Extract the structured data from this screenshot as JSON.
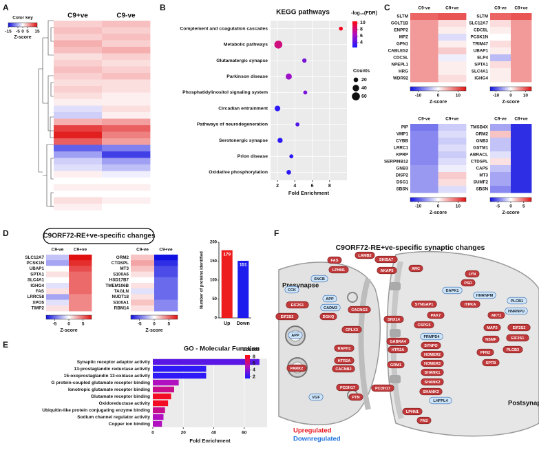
{
  "panel_labels": [
    "A",
    "B",
    "C",
    "D",
    "E",
    "F"
  ],
  "chart_data": [
    {
      "type": "heatmap",
      "columns": [
        "C9+ve",
        "C9-ve"
      ],
      "zlegend_title": "Color key",
      "zlabel": "Z-score",
      "zlim": [
        -15,
        15
      ],
      "zticks": [
        -15,
        -5,
        0,
        5,
        15
      ],
      "values": [
        [
          3,
          4
        ],
        [
          4,
          3
        ],
        [
          3,
          4
        ],
        [
          5,
          3
        ],
        [
          4,
          5
        ],
        [
          2,
          3
        ],
        [
          3,
          2
        ],
        [
          4,
          3
        ],
        [
          3,
          4
        ],
        [
          2,
          2
        ],
        [
          3,
          2
        ],
        [
          2,
          1
        ],
        [
          1,
          1
        ],
        [
          -2,
          2
        ],
        [
          -3,
          1
        ],
        [
          5,
          6
        ],
        [
          12,
          10
        ],
        [
          14,
          8
        ],
        [
          10,
          6
        ],
        [
          -10,
          -8
        ],
        [
          -6,
          -12
        ],
        [
          -3,
          -6
        ],
        [
          -2,
          -4
        ],
        [
          1,
          -1
        ],
        [
          0,
          0
        ],
        [
          1,
          1
        ],
        [
          0,
          0
        ],
        [
          2,
          1
        ],
        [
          1,
          0
        ],
        [
          0,
          0
        ]
      ]
    },
    {
      "type": "dot",
      "title": "KEGG pathways",
      "xlabel": "Fold Enrichment",
      "categories": [
        "Complement and coagulation cascades",
        "Metabolic pathways",
        "Glutamatergic synapse",
        "Parkinson disease",
        "Phosphatidylinositol signaling system",
        "Circadian entrainment",
        "Pathways of neurodegeneration",
        "Serotonergic synapse",
        "Prion disease",
        "Oxidative phosphorylation"
      ],
      "values": [
        9.3,
        2.1,
        5.1,
        3.3,
        5.2,
        2.0,
        4.3,
        2.3,
        3.6,
        3.3
      ],
      "fdr": [
        10,
        8,
        5,
        6,
        5,
        3,
        4,
        3,
        3,
        3
      ],
      "counts": [
        15,
        60,
        18,
        35,
        15,
        30,
        15,
        25,
        15,
        20
      ],
      "xlim": [
        1.2,
        10
      ],
      "xticks": [
        2,
        4,
        6,
        8
      ],
      "color_label": "-log₁₀(FDR)",
      "color_lim": [
        2.5,
        10.5
      ],
      "color_ticks": [
        4,
        6,
        8,
        10
      ],
      "size_label": "Counts",
      "size_ticks": [
        20,
        40,
        60
      ]
    },
    {
      "type": "heatmap",
      "columns": [
        "C9-ve",
        "C9+ve"
      ],
      "zlabel": "Z-score",
      "zlim": [
        -14,
        14
      ],
      "zticks": [
        -10,
        0,
        10
      ],
      "rows": [
        "SLTM",
        "GOLT1B",
        "ENPP2",
        "MPZ",
        "GPN1",
        "CABLES2",
        "CDCSL",
        "NPEPL1",
        "HRG",
        "WDR92"
      ],
      "values": [
        [
          9,
          10
        ],
        [
          6,
          2
        ],
        [
          6,
          1
        ],
        [
          6,
          -2
        ],
        [
          6,
          1
        ],
        [
          6,
          3
        ],
        [
          6,
          -1
        ],
        [
          6,
          1
        ],
        [
          6,
          1
        ],
        [
          6,
          2
        ]
      ]
    },
    {
      "type": "heatmap",
      "columns": [
        "C9-ve",
        "C9+ve"
      ],
      "zlabel": "Z-score",
      "zlim": [
        -14,
        14
      ],
      "zticks": [
        -10,
        0,
        10
      ],
      "rows": [
        "SLTM",
        "SLC12A7",
        "CDC5L",
        "PCSK1N",
        "TRIM47",
        "UBAP1",
        "ELP4",
        "SPTA1",
        "SLC4A1",
        "IGHG4"
      ],
      "values": [
        [
          9,
          10
        ],
        [
          2,
          6
        ],
        [
          1,
          6
        ],
        [
          0,
          6
        ],
        [
          2,
          6
        ],
        [
          1,
          6
        ],
        [
          -4,
          6
        ],
        [
          2,
          6
        ],
        [
          1,
          6
        ],
        [
          1,
          6
        ]
      ]
    },
    {
      "type": "heatmap",
      "columns": [
        "C9-ve",
        "C9+ve"
      ],
      "zlabel": "Z-score",
      "zlim": [
        -14,
        14
      ],
      "zticks": [
        -10,
        0,
        10
      ],
      "rows": [
        "PIP",
        "VMP1",
        "CYBB",
        "LRRC1",
        "KPRP",
        "SERPINB12",
        "GNB3",
        "DISP2",
        "DSG1",
        "SBSN"
      ],
      "values": [
        [
          -8,
          -3
        ],
        [
          -7,
          -2
        ],
        [
          -7,
          -3
        ],
        [
          -7,
          -2
        ],
        [
          -7,
          -3
        ],
        [
          -7,
          -2
        ],
        [
          -6,
          -1
        ],
        [
          -6,
          3
        ],
        [
          -6,
          2
        ],
        [
          -6,
          -2
        ]
      ]
    },
    {
      "type": "heatmap",
      "columns": [
        "C9-ve",
        "C9+ve"
      ],
      "zlabel": "Z-score",
      "zlim": [
        -8,
        8
      ],
      "zticks": [
        -5,
        0,
        5
      ],
      "rows": [
        "TMSB4X",
        "ORM2",
        "GNB3",
        "GSTM1",
        "ABRACL",
        "CTDSPL",
        "CAPS",
        "MT3",
        "SUMF2",
        "SBSN"
      ],
      "values": [
        [
          -3,
          -7
        ],
        [
          2,
          -7
        ],
        [
          -2,
          -7
        ],
        [
          -2,
          -7
        ],
        [
          -1,
          -7
        ],
        [
          1,
          -7
        ],
        [
          -2,
          -7
        ],
        [
          -3,
          -7
        ],
        [
          -3,
          -7
        ],
        [
          -4,
          -7
        ]
      ]
    },
    {
      "type": "heatmap",
      "title": "C9ORF72-RE+ve-specific changes",
      "columns": [
        "C9-ve",
        "C9+ve"
      ],
      "zlabel": "Z-score",
      "zlim": [
        -8,
        8
      ],
      "zticks": [
        -5,
        0,
        5
      ],
      "rows": [
        "SLC12A7",
        "PCSK1N",
        "UBAP1",
        "SPTA1",
        "SLC4A1",
        "IGHG4",
        "FAS",
        "LRRC58",
        "XPO5",
        "TIMP2"
      ],
      "values": [
        [
          -2,
          8
        ],
        [
          -3,
          7
        ],
        [
          0,
          6
        ],
        [
          1,
          5
        ],
        [
          0,
          5
        ],
        [
          -1,
          5
        ],
        [
          1,
          5
        ],
        [
          -3,
          4
        ],
        [
          -1,
          4
        ],
        [
          1,
          4
        ]
      ]
    },
    {
      "type": "heatmap",
      "columns": [
        "C9-ve",
        "C9+ve"
      ],
      "zlabel": "Z-score",
      "zlim": [
        -8,
        8
      ],
      "zticks": [
        -5,
        0,
        5
      ],
      "rows": [
        "ORM2",
        "CTDSPL",
        "MT3",
        "S100A6",
        "HSD17B7",
        "TMEM106B",
        "TAGLN",
        "NUDT18",
        "S100A1",
        "RBM14"
      ],
      "values": [
        [
          2,
          -8
        ],
        [
          3,
          -7
        ],
        [
          2,
          -6
        ],
        [
          1,
          -6
        ],
        [
          0,
          -5
        ],
        [
          1,
          -5
        ],
        [
          -1,
          -5
        ],
        [
          1,
          -5
        ],
        [
          2,
          -4
        ],
        [
          1,
          -4
        ]
      ]
    },
    {
      "type": "bar",
      "ylabel": "Number of proteins identified",
      "categories": [
        "Up",
        "Down"
      ],
      "values": [
        179,
        151
      ],
      "colors": [
        "#ee1d1d",
        "#1d1dee"
      ],
      "ylim": [
        0,
        200
      ],
      "yticks": [
        0,
        50,
        100,
        150,
        200
      ]
    },
    {
      "type": "hbar",
      "title": "GO - Molecular Function",
      "xlabel": "Fold Enrichment",
      "categories": [
        "Synaptic receptor adaptor activity",
        "13-prostaglandin reductase activity",
        "15-oxoprostaglandin 13-oxidase activity",
        "G protein-coupled glutamate receptor binding",
        "Ionotropic glutamate receptor binding",
        "Glutamate receptor binding",
        "Oxidoreductase activity",
        "Ubiquitin-like protein conjugating enzyme binding",
        "Sodium channel regulator activity",
        "Copper ion binding"
      ],
      "values": [
        70,
        35,
        35,
        17,
        14,
        12,
        10,
        8,
        7,
        6
      ],
      "counts": [
        3,
        2,
        2,
        5,
        6,
        8,
        8,
        6,
        5,
        5
      ],
      "xlim": [
        0,
        75
      ],
      "xticks": [
        0,
        20,
        40,
        60
      ],
      "color_label": "Counts",
      "color_lim": [
        1.5,
        8.5
      ],
      "color_ticks": [
        2,
        4,
        6,
        8
      ]
    }
  ],
  "diagram": {
    "title": "C9ORF72-RE+ve-specific synaptic changes",
    "presynapse": "Presynapse",
    "postsynapse": "Postsynapse",
    "legend": [
      {
        "label": "Upregulated",
        "color": "#e8141c"
      },
      {
        "label": "Downregulated",
        "color": "#1a6fe0"
      }
    ],
    "nodes": [
      {
        "label": "FAS",
        "color": "red"
      },
      {
        "label": "LAMB2",
        "color": "red"
      },
      {
        "label": "LPHN1",
        "color": "red"
      },
      {
        "label": "SHISA7",
        "color": "red"
      },
      {
        "label": "ARC",
        "color": "red"
      },
      {
        "label": "AKAP5",
        "color": "red"
      },
      {
        "label": "LYN",
        "color": "red"
      },
      {
        "label": "PSD",
        "color": "red"
      },
      {
        "label": "SNCB",
        "color": "blue"
      },
      {
        "label": "HNRNPM",
        "color": "blue"
      },
      {
        "label": "CCK",
        "color": "blue"
      },
      {
        "label": "DAPK1",
        "color": "blue"
      },
      {
        "label": "APP",
        "color": "blue"
      },
      {
        "label": "PLCB1",
        "color": "blue"
      },
      {
        "label": "CADM3",
        "color": "blue"
      },
      {
        "label": "ITPKA",
        "color": "red"
      },
      {
        "label": "EIF2S1",
        "color": "red"
      },
      {
        "label": "DGKQ",
        "color": "red"
      },
      {
        "label": "CACNG3",
        "color": "red"
      },
      {
        "label": "SYNGAP1",
        "color": "red"
      },
      {
        "label": "PAK7",
        "color": "red"
      },
      {
        "label": "AKT1",
        "color": "red"
      },
      {
        "label": "HNRNPU",
        "color": "blue"
      },
      {
        "label": "EIF2S2",
        "color": "red"
      },
      {
        "label": "MAP2",
        "color": "red"
      },
      {
        "label": "EIF2S2",
        "color": "red"
      },
      {
        "label": "SNX14",
        "color": "red"
      },
      {
        "label": "CSPG5",
        "color": "red"
      },
      {
        "label": "FRMPD4",
        "color": "blue"
      },
      {
        "label": "NSMF",
        "color": "red"
      },
      {
        "label": "EIF2S1",
        "color": "red"
      },
      {
        "label": "APP",
        "color": "blue"
      },
      {
        "label": "CPLX3",
        "color": "red"
      },
      {
        "label": "GABRA4",
        "color": "red"
      },
      {
        "label": "SYNPO",
        "color": "red"
      },
      {
        "label": "PLCB3",
        "color": "red"
      },
      {
        "label": "HOMER2",
        "color": "red"
      },
      {
        "label": "PFN2",
        "color": "red"
      },
      {
        "label": "RAPH1",
        "color": "red"
      },
      {
        "label": "HTR2A",
        "color": "red"
      },
      {
        "label": "HTR2A",
        "color": "red"
      },
      {
        "label": "HOMER3",
        "color": "red"
      },
      {
        "label": "SPTB",
        "color": "red"
      },
      {
        "label": "PARK2",
        "color": "red"
      },
      {
        "label": "CACNB2",
        "color": "red"
      },
      {
        "label": "GRM1",
        "color": "red"
      },
      {
        "label": "SHANK1",
        "color": "red"
      },
      {
        "label": "SHANK2",
        "color": "red"
      },
      {
        "label": "SHANK3",
        "color": "red"
      },
      {
        "label": "VGF",
        "color": "blue"
      },
      {
        "label": "PCDH17",
        "color": "red"
      },
      {
        "label": "PCDH17",
        "color": "red"
      },
      {
        "label": "LHFPL4",
        "color": "blue"
      },
      {
        "label": "PTN",
        "color": "red"
      },
      {
        "label": "LPHN1",
        "color": "red"
      },
      {
        "label": "FAS",
        "color": "red"
      }
    ]
  }
}
